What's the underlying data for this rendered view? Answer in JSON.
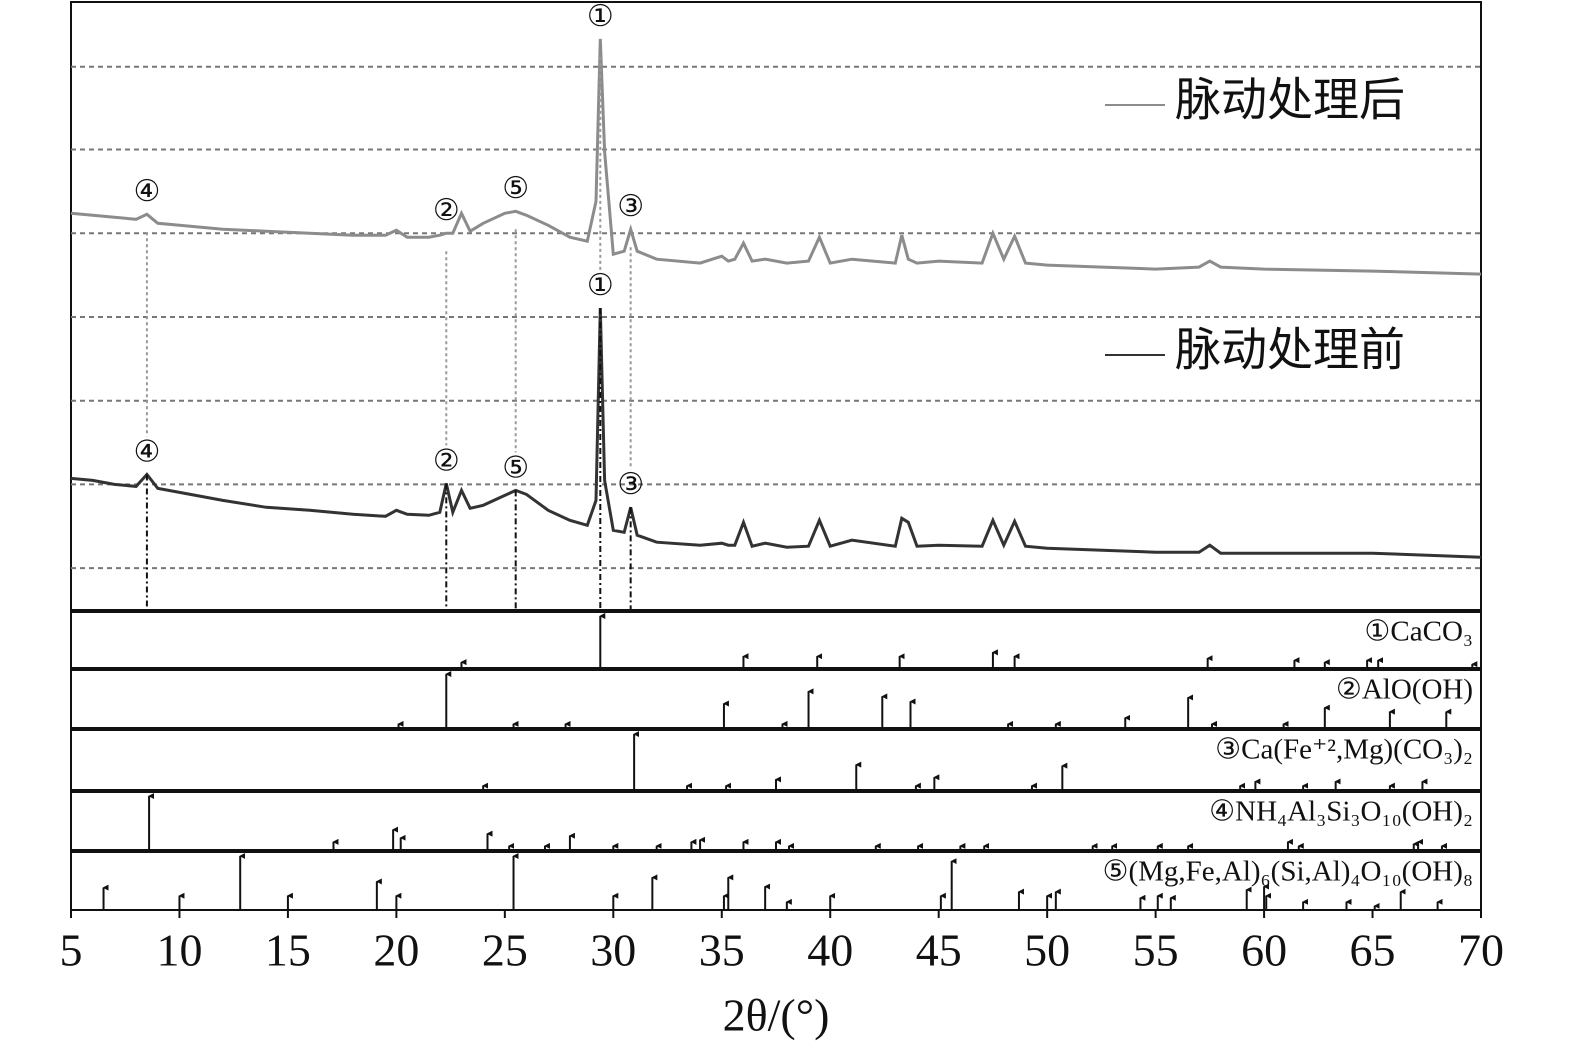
{
  "chart_data": [
    {
      "type": "line",
      "xlabel": "2θ/(°)",
      "xlim": [
        5,
        70
      ],
      "xticks": [
        5,
        10,
        15,
        20,
        25,
        30,
        35,
        40,
        45,
        50,
        55,
        60,
        65,
        70
      ],
      "ylim": [
        0,
        610
      ],
      "yticks": [
        42,
        126,
        210,
        294,
        378,
        462,
        545
      ],
      "ytick_labels": false,
      "grid": true,
      "grid_style": "dashed",
      "x": [
        5,
        6,
        7,
        8,
        8.5,
        9,
        10,
        12,
        14,
        16,
        18,
        19.5,
        20,
        20.5,
        21.5,
        22,
        22.3,
        22.6,
        23,
        23.4,
        24,
        25,
        25.5,
        26,
        27,
        28,
        28.8,
        29.2,
        29.4,
        29.6,
        30,
        30.5,
        30.8,
        31.1,
        32,
        34,
        35,
        35.3,
        35.6,
        36,
        36.4,
        37,
        38,
        39,
        39.5,
        40,
        41,
        43,
        43.3,
        43.6,
        44,
        45,
        47,
        47.5,
        48,
        48.5,
        49,
        50,
        55,
        57,
        57.5,
        58,
        60,
        65,
        70
      ],
      "series": [
        {
          "name": "脉动处理后",
          "color": "#8c8c8c",
          "values": [
            398,
            396,
            394,
            392,
            397,
            388,
            386,
            382,
            380,
            378,
            376,
            376,
            381,
            374,
            374,
            376,
            378,
            378,
            398,
            380,
            388,
            398,
            400,
            396,
            386,
            374,
            370,
            410,
            573,
            460,
            357,
            360,
            382,
            360,
            352,
            348,
            355,
            350,
            352,
            368,
            350,
            352,
            348,
            350,
            374,
            348,
            352,
            348,
            376,
            352,
            348,
            350,
            348,
            378,
            352,
            375,
            348,
            346,
            342,
            344,
            350,
            344,
            342,
            340,
            337
          ],
          "peaks": [
            {
              "label": "④",
              "x": 8.5
            },
            {
              "label": "②",
              "x": 22.3
            },
            {
              "label": "⑤",
              "x": 25.5
            },
            {
              "label": "①",
              "x": 29.4
            },
            {
              "label": "③",
              "x": 30.8
            }
          ]
        },
        {
          "name": "脉动处理前",
          "color": "#333333",
          "values": [
            132,
            130,
            126,
            124,
            136,
            122,
            118,
            110,
            103,
            100,
            96,
            94,
            100,
            96,
            95,
            98,
            127,
            98,
            120,
            102,
            105,
            115,
            120,
            116,
            100,
            90,
            85,
            110,
            303,
            130,
            80,
            78,
            103,
            75,
            68,
            65,
            67,
            65,
            65,
            88,
            64,
            67,
            63,
            64,
            90,
            64,
            70,
            64,
            92,
            88,
            64,
            65,
            64,
            90,
            65,
            89,
            64,
            62,
            58,
            58,
            65,
            57,
            57,
            57,
            53
          ],
          "peaks": [
            {
              "label": "④",
              "x": 8.5
            },
            {
              "label": "②",
              "x": 22.3
            },
            {
              "label": "⑤",
              "x": 25.5
            },
            {
              "label": "①",
              "x": 29.4
            },
            {
              "label": "③",
              "x": 30.8
            }
          ]
        }
      ]
    },
    {
      "type": "stem",
      "label": "①CaCO₃",
      "ylim": [
        0,
        57
      ],
      "x": [
        23.0,
        29.4,
        36.0,
        39.4,
        43.2,
        47.5,
        48.5,
        57.4,
        61.4,
        62.8,
        64.75,
        65.26,
        69.6
      ],
      "values": [
        8,
        55,
        14,
        14,
        14,
        18,
        14,
        12,
        10,
        8,
        10,
        10,
        6
      ]
    },
    {
      "type": "stem",
      "label": "②AlO(OH)",
      "ylim": [
        0,
        57
      ],
      "x": [
        20.1,
        22.3,
        25.4,
        27.8,
        35.1,
        37.8,
        39.0,
        42.4,
        43.7,
        48.2,
        50.4,
        53.6,
        56.5,
        57.6,
        60.9,
        62.8,
        65.8,
        68.4
      ],
      "values": [
        6,
        55,
        6,
        6,
        26,
        6,
        38,
        33,
        28,
        6,
        6,
        12,
        32,
        6,
        6,
        22,
        18,
        18
      ]
    },
    {
      "type": "stem",
      "label": "③Ca(Fe⁺²,Mg)(CO₃)₂",
      "ylim": [
        0,
        57
      ],
      "x": [
        24.0,
        30.96,
        33.4,
        35.2,
        37.5,
        41.2,
        43.95,
        44.8,
        49.3,
        50.7,
        58.9,
        59.6,
        61.8,
        63.3,
        65.8,
        67.3
      ],
      "values": [
        6,
        55,
        6,
        6,
        12,
        26,
        6,
        14,
        6,
        25,
        6,
        10,
        6,
        10,
        6,
        10
      ]
    },
    {
      "type": "stem",
      "label": "④NH₄Al₃Si₃O₁₀(OH)₂",
      "ylim": [
        0,
        57
      ],
      "x": [
        8.6,
        17.1,
        19.85,
        20.2,
        24.2,
        25.2,
        26.85,
        28.0,
        30.0,
        32.0,
        33.6,
        34.0,
        36.0,
        37.5,
        38.1,
        42.1,
        44.05,
        46.0,
        47.1,
        52.1,
        53.0,
        55.1,
        56.5,
        61.1,
        61.6,
        66.9,
        67.1,
        68.2
      ],
      "values": [
        55,
        10,
        22,
        14,
        18,
        6,
        6,
        16,
        6,
        6,
        10,
        12,
        10,
        10,
        6,
        6,
        6,
        6,
        6,
        6,
        6,
        6,
        6,
        10,
        6,
        8,
        10,
        6
      ]
    },
    {
      "type": "stem",
      "label": "⑤(Mg,Fe,Al)₆(Si,Al)₄O₁₀(OH)₈",
      "ylim": [
        0,
        57
      ],
      "x": [
        6.5,
        10.0,
        12.8,
        15.0,
        19.1,
        20.0,
        25.4,
        30.0,
        31.8,
        35.1,
        35.3,
        37.0,
        38.0,
        40.0,
        45.1,
        45.6,
        48.7,
        50.0,
        50.4,
        54.3,
        55.1,
        55.7,
        59.2,
        60.0,
        60.1,
        61.8,
        63.8,
        65.1,
        66.3,
        68.0
      ],
      "values": [
        24,
        16,
        55,
        16,
        30,
        16,
        55,
        16,
        34,
        16,
        34,
        25,
        10,
        16,
        16,
        50,
        20,
        16,
        20,
        14,
        16,
        14,
        22,
        25,
        16,
        10,
        10,
        6,
        20,
        10
      ]
    }
  ]
}
